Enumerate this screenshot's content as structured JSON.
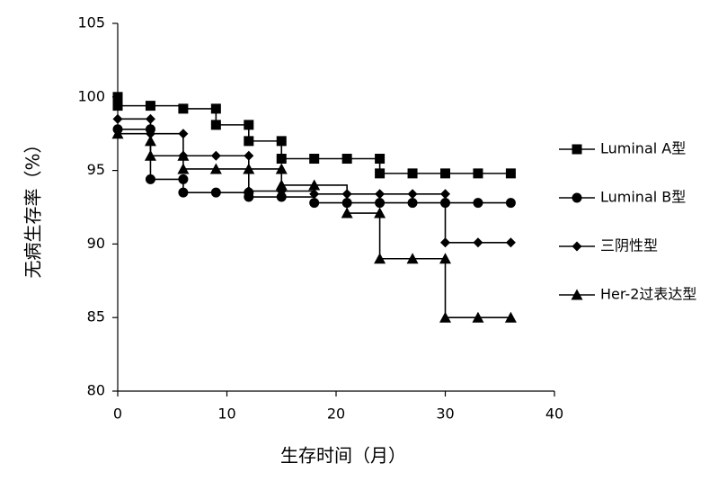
{
  "chart_data": {
    "type": "line",
    "step": true,
    "x_label": "生存时间（月）",
    "y_label": "无病生存率（%）",
    "xlim": [
      0,
      40
    ],
    "xticks": [
      0,
      10,
      20,
      30,
      40
    ],
    "ylim": [
      80,
      105
    ],
    "yticks": [
      80,
      85,
      90,
      95,
      100,
      105
    ],
    "grid": false,
    "legend": "right",
    "series": [
      {
        "name": "Luminal A型",
        "color": "#000000",
        "marker": "square",
        "x": [
          0,
          0,
          3,
          6,
          9,
          9,
          12,
          12,
          15,
          15,
          18,
          21,
          24,
          24,
          27,
          30,
          33,
          36
        ],
        "values": [
          100,
          99.4,
          99.4,
          99.2,
          99.2,
          98.1,
          98.1,
          97,
          97,
          95.8,
          95.8,
          95.8,
          95.8,
          94.8,
          94.8,
          94.8,
          94.8,
          94.8
        ]
      },
      {
        "name": "Luminal B型",
        "color": "#000000",
        "marker": "circle",
        "x": [
          0,
          3,
          3,
          6,
          6,
          9,
          12,
          12,
          15,
          18,
          21,
          24,
          27,
          30,
          33,
          36
        ],
        "values": [
          97.8,
          97.8,
          94.4,
          94.4,
          93.5,
          93.5,
          93.5,
          93.2,
          93.2,
          92.8,
          92.8,
          92.8,
          92.8,
          92.8,
          92.8,
          92.8
        ]
      },
      {
        "name": "三阴性型",
        "color": "#000000",
        "marker": "diamond",
        "x": [
          0,
          3,
          3,
          6,
          6,
          9,
          12,
          12,
          15,
          18,
          21,
          24,
          27,
          30,
          30,
          33,
          36
        ],
        "values": [
          98.5,
          98.5,
          97.5,
          97.5,
          96,
          96,
          96,
          93.6,
          93.6,
          93.4,
          93.4,
          93.4,
          93.4,
          93.4,
          90.1,
          90.1,
          90.1
        ]
      },
      {
        "name": "Her-2过表达型",
        "color": "#000000",
        "marker": "triangle",
        "x": [
          0,
          3,
          3,
          6,
          6,
          9,
          12,
          15,
          15,
          18,
          21,
          24,
          24,
          27,
          30,
          30,
          33,
          36
        ],
        "values": [
          97.5,
          97,
          96,
          96,
          95.1,
          95.1,
          95.1,
          95.1,
          94,
          94,
          92.1,
          92.1,
          89,
          89,
          89,
          85,
          85,
          85
        ]
      }
    ]
  }
}
